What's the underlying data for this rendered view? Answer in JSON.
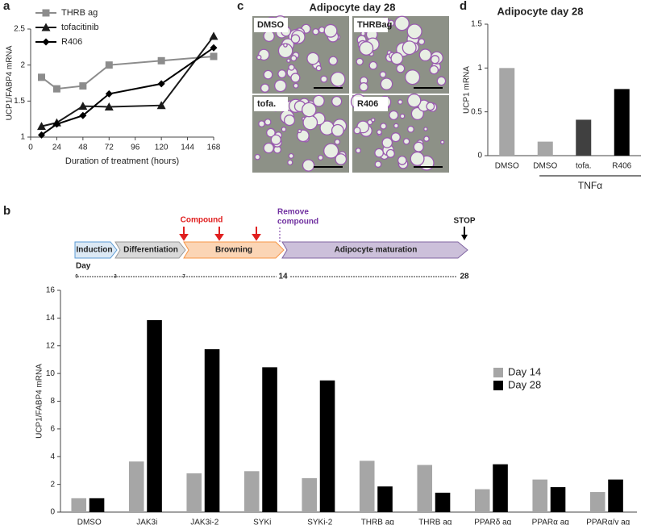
{
  "panels": [
    "a",
    "b",
    "c",
    "d"
  ],
  "micrographs": {
    "title": "Adipocyte day 28",
    "labels": [
      "DMSO",
      "THRBag",
      "tofa.",
      "R406"
    ]
  },
  "timeline": {
    "stages": [
      "Induction",
      "Differentiation",
      "Browning",
      "Adipocyte maturation"
    ],
    "day_label": "Day",
    "days": [
      "0",
      "3",
      "7",
      "14",
      "28"
    ],
    "compound": "Compound",
    "remove": [
      "Remove",
      "compound"
    ],
    "stop": "STOP"
  },
  "chart_data": [
    {
      "type": "line",
      "xlabel": "Duration of treatment (hours)",
      "ylabel": "UCP1/FABP4 mRNA",
      "x": [
        10,
        24,
        48,
        72,
        120,
        168
      ],
      "series": [
        {
          "name": "THRB ag",
          "color": "#8c8c8c",
          "marker": "square",
          "values": [
            1.83,
            1.67,
            1.71,
            2.0,
            2.06,
            2.12
          ]
        },
        {
          "name": "tofacitinib",
          "color": "#1a1a1a",
          "marker": "triangle",
          "values": [
            1.15,
            1.2,
            1.43,
            1.42,
            1.44,
            2.4
          ]
        },
        {
          "name": "R406",
          "color": "#000000",
          "marker": "diamond",
          "values": [
            1.03,
            1.18,
            1.3,
            1.6,
            1.74,
            2.24
          ]
        }
      ],
      "xlim": [
        0,
        168
      ],
      "ylim": [
        1,
        2.5
      ],
      "xticks": [
        0,
        24,
        48,
        72,
        96,
        120,
        144,
        168
      ],
      "yticks": [
        1,
        1.5,
        2,
        2.5
      ],
      "legend": "upper left"
    },
    {
      "type": "bar",
      "title": "Adipocyte day 28",
      "ylabel": "UCP1 mRNA",
      "categories": [
        "DMSO",
        "DMSO",
        "tofa.",
        "R406"
      ],
      "values": [
        1.0,
        0.16,
        0.41,
        0.76
      ],
      "colors": [
        "#a6a6a6",
        "#a6a6a6",
        "#404040",
        "#000000"
      ],
      "annotation": "TNFα",
      "ylim": [
        0,
        1.5
      ],
      "yticks": [
        0,
        0.5,
        1,
        1.5
      ]
    },
    {
      "type": "bar",
      "ylabel": "UCP1/FABP4 mRNA",
      "categories": [
        "DMSO",
        "JAK3i",
        "JAK3i-2",
        "SYKi",
        "SYKi-2",
        "THRB ag",
        "THRB ag",
        "PPARδ ag",
        "PPARα ag",
        "PPARα/γ ag"
      ],
      "series": [
        {
          "name": "Day 14",
          "color": "#a6a6a6",
          "values": [
            1,
            3.65,
            2.8,
            2.95,
            2.45,
            3.7,
            3.4,
            1.65,
            2.35,
            1.45
          ]
        },
        {
          "name": "Day 28",
          "color": "#000000",
          "values": [
            1,
            13.85,
            11.75,
            10.45,
            9.5,
            1.85,
            1.4,
            3.45,
            1.8,
            2.35
          ]
        }
      ],
      "ylim": [
        0,
        16
      ],
      "yticks": [
        0,
        2,
        4,
        6,
        8,
        10,
        12,
        14,
        16
      ],
      "legend": "right"
    }
  ]
}
